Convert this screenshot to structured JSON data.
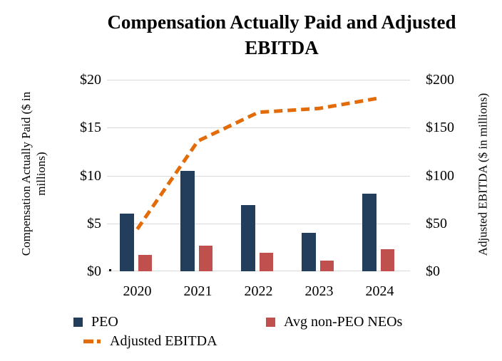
{
  "title": "Compensation Actually Paid and Adjusted EBITDA",
  "colors": {
    "peo_bar": "#233E5C",
    "neo_bar": "#C0504D",
    "ebitda_line": "#E36C0A",
    "gridline": "#D9D9D9",
    "text": "#000000"
  },
  "chart_data": {
    "type": "bar",
    "subtype": "combo-bar-line",
    "title": "Compensation Actually Paid and Adjusted EBITDA",
    "categories": [
      "2020",
      "2021",
      "2022",
      "2023",
      "2024"
    ],
    "series": [
      {
        "name": "PEO",
        "type": "bar",
        "axis": "left",
        "color": "#233E5C",
        "values": [
          6.0,
          10.5,
          6.9,
          4.0,
          8.1
        ]
      },
      {
        "name": "Avg non-PEO NEOs",
        "type": "bar",
        "axis": "left",
        "color": "#C0504D",
        "values": [
          1.7,
          2.7,
          1.9,
          1.1,
          2.3
        ]
      },
      {
        "name": "Adjusted EBITDA",
        "type": "line",
        "axis": "right",
        "color": "#E36C0A",
        "dashed": true,
        "values": [
          44,
          136,
          166,
          170,
          181
        ]
      }
    ],
    "left_axis": {
      "label": "Compensation Actually Paid ($ in millions)",
      "ticks": [
        "$0",
        "$5",
        "$10",
        "$15",
        "$20"
      ],
      "tick_values": [
        0,
        5,
        10,
        15,
        20
      ],
      "range": [
        0,
        20
      ]
    },
    "right_axis": {
      "label": "Adjusted EBITDA ($ in millions)",
      "ticks": [
        "$0",
        "$50",
        "$100",
        "$150",
        "$200"
      ],
      "tick_values": [
        0,
        50,
        100,
        150,
        200
      ],
      "range": [
        0,
        200
      ]
    },
    "grid": true,
    "legend_position": "bottom"
  },
  "legend": {
    "items": [
      {
        "label": "PEO",
        "marker": "square",
        "color": "#233E5C"
      },
      {
        "label": "Avg non-PEO NEOs",
        "marker": "square",
        "color": "#C0504D"
      },
      {
        "label": "Adjusted EBITDA",
        "marker": "dashed-line",
        "color": "#E36C0A"
      }
    ]
  }
}
